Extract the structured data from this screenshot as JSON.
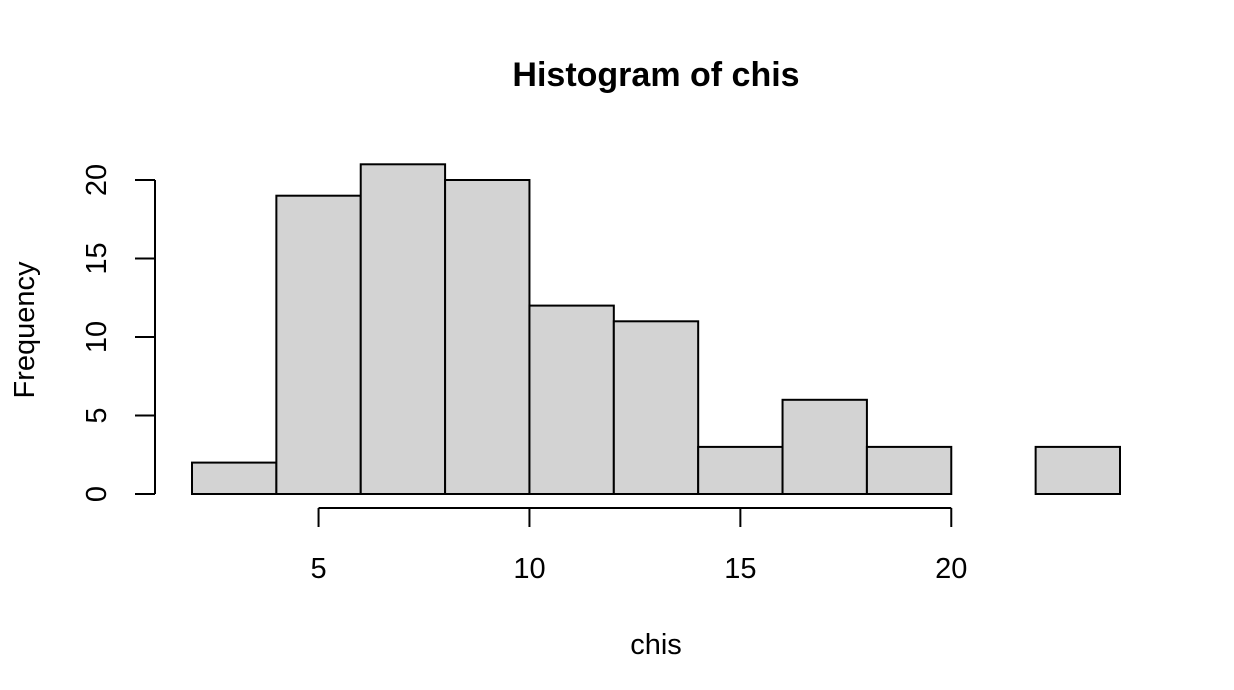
{
  "chart_data": {
    "type": "bar",
    "title": "Histogram of chis",
    "xlabel": "chis",
    "ylabel": "Frequency",
    "bins": [
      {
        "start": 2,
        "end": 4,
        "count": 2
      },
      {
        "start": 4,
        "end": 6,
        "count": 19
      },
      {
        "start": 6,
        "end": 8,
        "count": 21
      },
      {
        "start": 8,
        "end": 10,
        "count": 20
      },
      {
        "start": 10,
        "end": 12,
        "count": 12
      },
      {
        "start": 12,
        "end": 14,
        "count": 11
      },
      {
        "start": 14,
        "end": 16,
        "count": 3
      },
      {
        "start": 16,
        "end": 18,
        "count": 6
      },
      {
        "start": 18,
        "end": 20,
        "count": 3
      },
      {
        "start": 20,
        "end": 22,
        "count": 0
      },
      {
        "start": 22,
        "end": 24,
        "count": 3
      }
    ],
    "x_ticks": [
      "5",
      "10",
      "15",
      "20"
    ],
    "y_ticks": [
      "0",
      "5",
      "10",
      "15",
      "20"
    ],
    "xlim": [
      2,
      24
    ],
    "ylim": [
      0,
      21
    ],
    "grid": false,
    "bar_color": "#d3d3d3",
    "bar_border_color": "#000000"
  }
}
